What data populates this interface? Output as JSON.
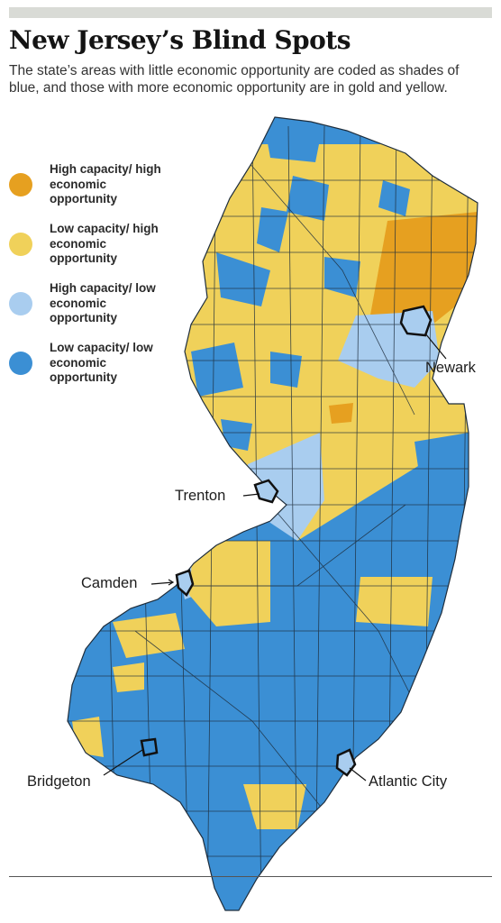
{
  "header": {
    "title": "New Jersey’s Blind Spots",
    "subtitle": "The state’s areas with little economic opportunity are coded as shades of blue, and those with more economic opportunity are in gold and yellow."
  },
  "legend": [
    {
      "label": "High capacity/ high economic opportunity",
      "color": "#e6a020"
    },
    {
      "label": "Low capacity/ high economic opportunity",
      "color": "#f0d15a"
    },
    {
      "label": "High capacity/ low economic opportunity",
      "color": "#a9cdef"
    },
    {
      "label": "Low capacity/ low economic opportunity",
      "color": "#3b8fd4"
    }
  ],
  "cities": {
    "newark": "Newark",
    "trenton": "Trenton",
    "camden": "Camden",
    "bridgeton": "Bridgeton",
    "atlantic_city": "Atlantic City"
  },
  "colors": {
    "border": "#1e2d3c",
    "rule": "#d9dbd6"
  }
}
